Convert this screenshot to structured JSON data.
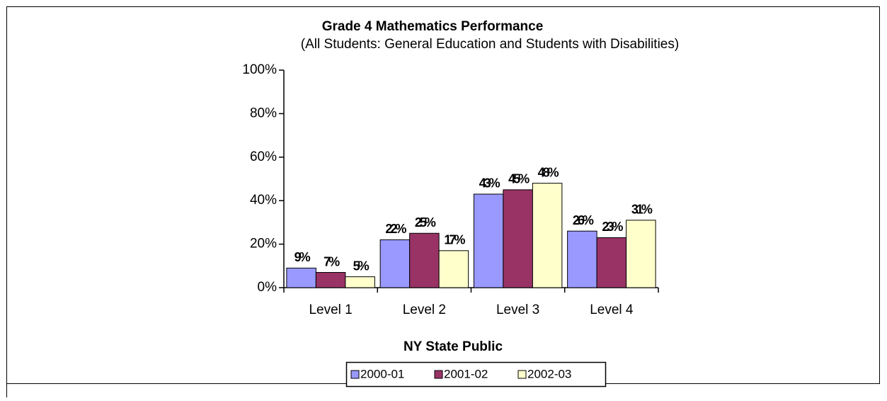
{
  "chart_data": {
    "type": "bar",
    "title": "Grade 4 Mathematics Performance",
    "subtitle": "(All Students:  General Education and Students with Disabilities)",
    "x_label": "NY State Public",
    "categories": [
      "Level 1",
      "Level 2",
      "Level 3",
      "Level 4"
    ],
    "series": [
      {
        "name": "2000-01",
        "color": "#9999ff",
        "values": [
          9,
          22,
          43,
          26
        ],
        "value_labels": [
          "9%",
          "22%",
          "43%",
          "26%"
        ]
      },
      {
        "name": "2001-02",
        "color": "#993366",
        "values": [
          7,
          25,
          45,
          23
        ],
        "value_labels": [
          "7%",
          "25%",
          "45%",
          "23%"
        ]
      },
      {
        "name": "2002-03",
        "color": "#ffffcc",
        "values": [
          5,
          17,
          48,
          31
        ],
        "value_labels": [
          "5%",
          "17%",
          "48%",
          "31%"
        ]
      }
    ],
    "ylim": [
      0,
      100
    ],
    "yticks": [
      {
        "value": 0,
        "label": "0%"
      },
      {
        "value": 20,
        "label": "20%"
      },
      {
        "value": 40,
        "label": "40%"
      },
      {
        "value": 60,
        "label": "60%"
      },
      {
        "value": 80,
        "label": "80%"
      },
      {
        "value": 100,
        "label": "100%"
      }
    ],
    "grid": false,
    "legend": "bottom"
  }
}
